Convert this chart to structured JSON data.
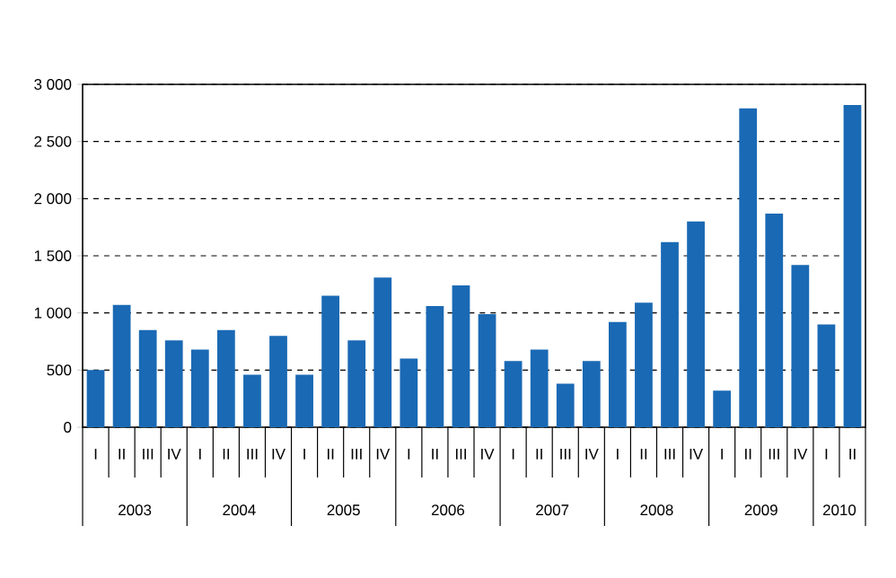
{
  "chart_data": {
    "type": "bar",
    "categories": [
      "I",
      "II",
      "III",
      "IV",
      "I",
      "II",
      "III",
      "IV",
      "I",
      "II",
      "III",
      "IV",
      "I",
      "II",
      "III",
      "IV",
      "I",
      "II",
      "III",
      "IV",
      "I",
      "II",
      "III",
      "IV",
      "I",
      "II",
      "III",
      "IV",
      "I",
      "II"
    ],
    "values": [
      500,
      1070,
      850,
      760,
      680,
      850,
      460,
      800,
      460,
      1150,
      760,
      1310,
      600,
      1060,
      1240,
      990,
      580,
      680,
      380,
      580,
      920,
      1090,
      1620,
      1800,
      320,
      2790,
      1870,
      1420,
      900,
      2820
    ],
    "color": "#1a69b4",
    "ylim": [
      0,
      3000
    ],
    "yticks": [
      0,
      500,
      {
        "value": 1000,
        "label": "1 000"
      },
      {
        "value": 1500,
        "label": "1 500"
      },
      {
        "value": 2000,
        "label": "2 000"
      },
      {
        "value": 2500,
        "label": "2 500"
      },
      {
        "value": 3000,
        "label": "3 000"
      }
    ],
    "grid": "y",
    "annotations": [
      "2003",
      "2004",
      "2005",
      "2006",
      "2007",
      "2008",
      "2009",
      "2010"
    ]
  }
}
